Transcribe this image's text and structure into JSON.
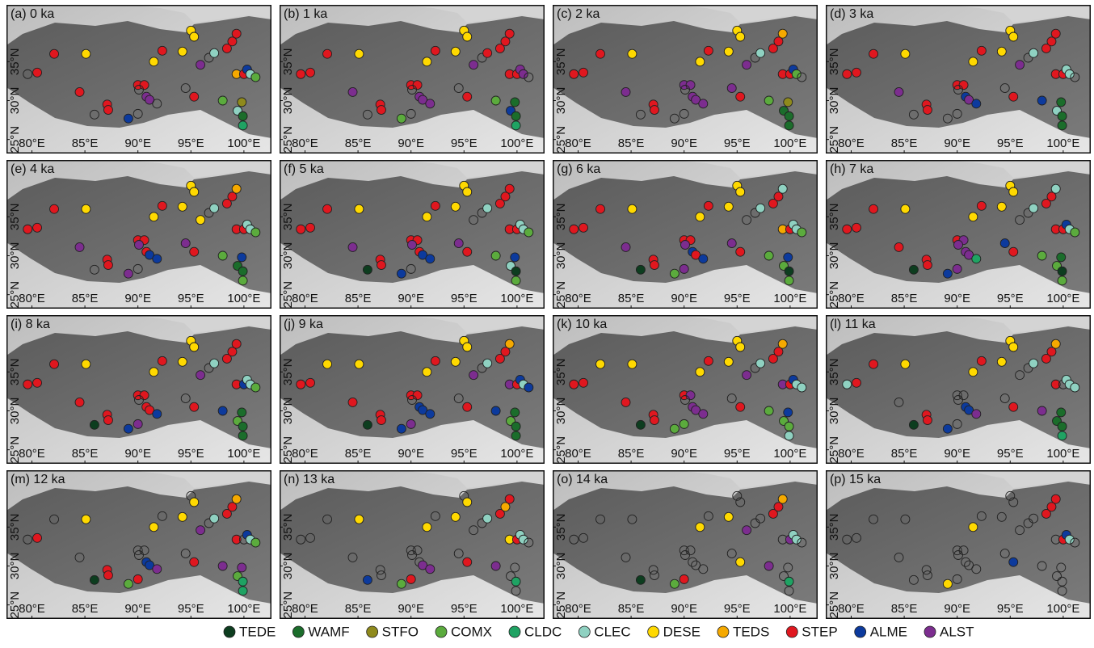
{
  "chart_data": {
    "type": "map",
    "xlim": [
      77.6,
      102.6
    ],
    "ylim": [
      23.2,
      42.3
    ],
    "xticks": [
      {
        "value": 80,
        "label": "80°E"
      },
      {
        "value": 85,
        "label": "85°E"
      },
      {
        "value": 90,
        "label": "90°E"
      },
      {
        "value": 95,
        "label": "95°E"
      },
      {
        "value": 100,
        "label": "100°E"
      }
    ],
    "yticks": [
      {
        "value": 25,
        "label": "25°N"
      },
      {
        "value": 30,
        "label": "30°N"
      },
      {
        "value": 35,
        "label": "35°N"
      }
    ],
    "legend": [
      {
        "name": "TEDE",
        "color": "#0d3d1f"
      },
      {
        "name": "WAMF",
        "color": "#1b6d2b"
      },
      {
        "name": "STFO",
        "color": "#8f8a1c"
      },
      {
        "name": "COMX",
        "color": "#5bab3d"
      },
      {
        "name": "CLDC",
        "color": "#1fa363"
      },
      {
        "name": "CLEC",
        "color": "#8fd1c1"
      },
      {
        "name": "DESE",
        "color": "#ffd900"
      },
      {
        "name": "TEDS",
        "color": "#f5a900"
      },
      {
        "name": "STEP",
        "color": "#e0171f"
      },
      {
        "name": "ALME",
        "color": "#0c3a9d"
      },
      {
        "name": "ALST",
        "color": "#7c2d8f"
      }
    ],
    "sites": [
      [
        82.1,
        36.0
      ],
      [
        85.1,
        36.0
      ],
      [
        79.6,
        33.4
      ],
      [
        80.5,
        33.6
      ],
      [
        84.5,
        31.1
      ],
      [
        87.1,
        29.5
      ],
      [
        87.2,
        28.8
      ],
      [
        85.9,
        28.2
      ],
      [
        89.1,
        27.7
      ],
      [
        90.0,
        32.0
      ],
      [
        90.6,
        32.0
      ],
      [
        90.8,
        30.5
      ],
      [
        91.1,
        30.1
      ],
      [
        91.8,
        29.6
      ],
      [
        90.0,
        28.3
      ],
      [
        90.1,
        31.4
      ],
      [
        91.5,
        35.0
      ],
      [
        92.3,
        36.4
      ],
      [
        95.0,
        39.0
      ],
      [
        95.3,
        38.2
      ],
      [
        94.2,
        36.3
      ],
      [
        94.5,
        31.6
      ],
      [
        95.3,
        30.5
      ],
      [
        95.9,
        34.6
      ],
      [
        96.7,
        35.5
      ],
      [
        97.2,
        36.1
      ],
      [
        98.4,
        36.7
      ],
      [
        98.9,
        37.6
      ],
      [
        99.3,
        38.6
      ],
      [
        98.0,
        30.0
      ],
      [
        99.4,
        28.7
      ],
      [
        99.9,
        28.0
      ],
      [
        99.9,
        26.8
      ],
      [
        99.8,
        29.8
      ],
      [
        99.3,
        33.4
      ],
      [
        100.0,
        33.4
      ],
      [
        100.3,
        34.0
      ],
      [
        100.6,
        33.4
      ],
      [
        101.1,
        33.0
      ]
    ],
    "panels": [
      {
        "title": "(a) 0 ka",
        "biomes": [
          8,
          6,
          null,
          8,
          8,
          8,
          8,
          null,
          9,
          8,
          8,
          10,
          10,
          null,
          null,
          null,
          6,
          8,
          6,
          6,
          6,
          null,
          8,
          10,
          null,
          5,
          8,
          8,
          8,
          3,
          5,
          1,
          4,
          2,
          7,
          8,
          9,
          5,
          3
        ]
      },
      {
        "title": "(b) 1 ka",
        "biomes": [
          8,
          6,
          8,
          8,
          10,
          8,
          8,
          null,
          3,
          8,
          8,
          10,
          10,
          10,
          null,
          null,
          6,
          8,
          6,
          6,
          6,
          null,
          8,
          10,
          null,
          8,
          8,
          8,
          8,
          3,
          9,
          1,
          4,
          1,
          8,
          8,
          10,
          10,
          null
        ]
      },
      {
        "title": "(c) 2 ka",
        "biomes": [
          8,
          6,
          8,
          8,
          10,
          8,
          8,
          null,
          null,
          10,
          10,
          10,
          10,
          10,
          null,
          null,
          6,
          8,
          6,
          6,
          6,
          10,
          8,
          10,
          null,
          5,
          8,
          8,
          7,
          3,
          1,
          1,
          1,
          2,
          8,
          8,
          9,
          3,
          null
        ]
      },
      {
        "title": "(d) 3 ka",
        "biomes": [
          8,
          6,
          8,
          8,
          10,
          8,
          8,
          null,
          null,
          8,
          8,
          9,
          10,
          9,
          null,
          null,
          6,
          8,
          6,
          6,
          6,
          null,
          8,
          10,
          null,
          5,
          8,
          8,
          8,
          9,
          5,
          1,
          1,
          1,
          8,
          8,
          5,
          5,
          null
        ]
      },
      {
        "title": "(e) 4 ka",
        "biomes": [
          8,
          6,
          8,
          8,
          10,
          8,
          8,
          null,
          10,
          8,
          8,
          8,
          9,
          9,
          null,
          10,
          6,
          8,
          6,
          6,
          6,
          10,
          8,
          6,
          null,
          5,
          8,
          8,
          7,
          3,
          1,
          1,
          3,
          9,
          8,
          8,
          5,
          5,
          3
        ]
      },
      {
        "title": "(f) 5 ka",
        "biomes": [
          8,
          6,
          8,
          8,
          10,
          8,
          8,
          0,
          9,
          8,
          8,
          8,
          9,
          9,
          null,
          10,
          6,
          8,
          6,
          6,
          6,
          10,
          8,
          null,
          null,
          5,
          8,
          8,
          8,
          3,
          5,
          0,
          3,
          9,
          8,
          8,
          5,
          5,
          3
        ]
      },
      {
        "title": "(g) 6 ka",
        "biomes": [
          8,
          6,
          8,
          8,
          10,
          8,
          8,
          0,
          3,
          8,
          8,
          9,
          8,
          9,
          10,
          10,
          6,
          8,
          6,
          6,
          6,
          10,
          8,
          null,
          null,
          5,
          8,
          8,
          5,
          3,
          3,
          0,
          3,
          9,
          7,
          8,
          5,
          5,
          3
        ]
      },
      {
        "title": "(h) 7 ka",
        "biomes": [
          8,
          6,
          8,
          8,
          8,
          8,
          8,
          0,
          9,
          8,
          10,
          10,
          10,
          4,
          10,
          10,
          6,
          8,
          6,
          6,
          6,
          9,
          8,
          null,
          null,
          5,
          8,
          8,
          5,
          3,
          3,
          0,
          3,
          1,
          8,
          8,
          9,
          5,
          3
        ]
      },
      {
        "title": "(i) 8 ka",
        "biomes": [
          8,
          6,
          8,
          8,
          8,
          8,
          8,
          0,
          9,
          8,
          8,
          8,
          8,
          9,
          10,
          null,
          6,
          8,
          6,
          6,
          6,
          null,
          8,
          10,
          null,
          5,
          8,
          8,
          8,
          9,
          3,
          1,
          1,
          1,
          8,
          9,
          5,
          5,
          3
        ]
      },
      {
        "title": "(j) 9 ka",
        "biomes": [
          6,
          6,
          8,
          8,
          8,
          8,
          8,
          0,
          9,
          8,
          8,
          9,
          9,
          9,
          10,
          null,
          6,
          8,
          6,
          6,
          6,
          null,
          8,
          10,
          null,
          5,
          8,
          8,
          7,
          9,
          3,
          1,
          1,
          1,
          10,
          8,
          9,
          5,
          9
        ]
      },
      {
        "title": "(k) 10 ka",
        "biomes": [
          6,
          6,
          8,
          8,
          8,
          8,
          8,
          0,
          3,
          8,
          10,
          10,
          10,
          10,
          3,
          null,
          6,
          8,
          6,
          6,
          6,
          null,
          8,
          10,
          null,
          5,
          8,
          8,
          7,
          3,
          3,
          3,
          5,
          9,
          10,
          8,
          9,
          5,
          5
        ]
      },
      {
        "title": "(l) 11 ka",
        "biomes": [
          8,
          6,
          5,
          8,
          null,
          8,
          8,
          0,
          9,
          null,
          null,
          9,
          9,
          10,
          null,
          null,
          6,
          8,
          6,
          6,
          6,
          null,
          8,
          null,
          null,
          5,
          8,
          8,
          7,
          10,
          1,
          1,
          4,
          1,
          8,
          null,
          5,
          5,
          5
        ]
      },
      {
        "title": "(m) 12 ka",
        "biomes": [
          null,
          6,
          null,
          8,
          null,
          8,
          8,
          0,
          3,
          null,
          null,
          9,
          9,
          10,
          8,
          null,
          6,
          null,
          null,
          6,
          6,
          null,
          8,
          10,
          null,
          5,
          8,
          8,
          7,
          10,
          3,
          4,
          4,
          10,
          8,
          null,
          9,
          5,
          3
        ]
      },
      {
        "title": "(n) 13 ka",
        "biomes": [
          null,
          6,
          null,
          null,
          null,
          null,
          null,
          9,
          3,
          null,
          null,
          null,
          10,
          10,
          8,
          null,
          6,
          null,
          null,
          6,
          6,
          null,
          8,
          null,
          null,
          5,
          8,
          7,
          8,
          10,
          null,
          4,
          null,
          null,
          6,
          8,
          5,
          5,
          null
        ]
      },
      {
        "title": "(o) 14 ka",
        "biomes": [
          null,
          null,
          null,
          null,
          null,
          null,
          null,
          0,
          3,
          null,
          null,
          null,
          null,
          null,
          8,
          null,
          6,
          null,
          null,
          null,
          6,
          null,
          6,
          10,
          null,
          null,
          8,
          8,
          7,
          10,
          null,
          4,
          null,
          null,
          null,
          10,
          5,
          5,
          null
        ]
      },
      {
        "title": "(p) 15 ka",
        "biomes": [
          null,
          null,
          null,
          null,
          null,
          null,
          null,
          null,
          6,
          null,
          null,
          null,
          null,
          null,
          null,
          null,
          6,
          null,
          null,
          null,
          null,
          null,
          9,
          null,
          null,
          null,
          8,
          8,
          8,
          null,
          null,
          null,
          null,
          null,
          null,
          8,
          9,
          5,
          null
        ]
      }
    ]
  }
}
